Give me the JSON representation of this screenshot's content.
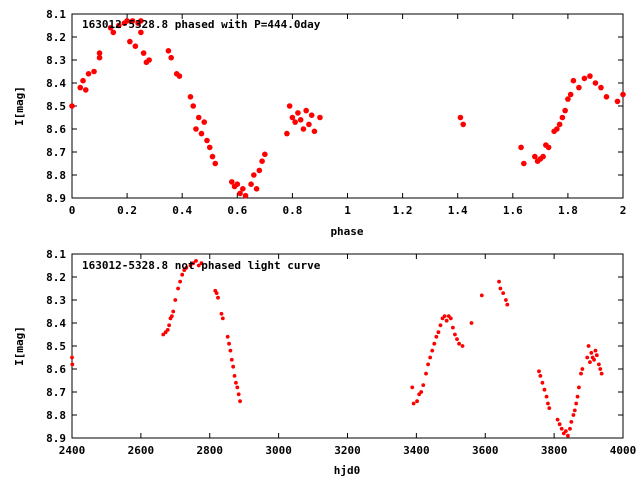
{
  "chart_data": [
    {
      "type": "scatter",
      "title": "163012-5328.8 phased with P=444.0day",
      "xlabel": "phase",
      "ylabel": "I[mag]",
      "xlim": [
        0,
        2
      ],
      "ylim": [
        8.1,
        8.9
      ],
      "y_inverted": true,
      "x_ticks": [
        "0",
        "0.2",
        "0.4",
        "0.6",
        "0.8",
        "1",
        "1.2",
        "1.4",
        "1.6",
        "1.8",
        "2"
      ],
      "y_ticks": [
        "8.1",
        "8.2",
        "8.3",
        "8.4",
        "8.5",
        "8.6",
        "8.7",
        "8.8",
        "8.9"
      ],
      "grid": false,
      "marker_color": "#ff0000",
      "series": [
        {
          "x": [
            0.0,
            0.03,
            0.04,
            0.05,
            0.06,
            0.08,
            0.1,
            0.1,
            0.14,
            0.15,
            0.17,
            0.19,
            0.2,
            0.21,
            0.22,
            0.23,
            0.24,
            0.25,
            0.25,
            0.26,
            0.27,
            0.28,
            0.35,
            0.36,
            0.38,
            0.39,
            0.43,
            0.44,
            0.45,
            0.46,
            0.47,
            0.48,
            0.49,
            0.5,
            0.51,
            0.52,
            0.58,
            0.59,
            0.6,
            0.61,
            0.62,
            0.63,
            0.65,
            0.66,
            0.67,
            0.68,
            0.69,
            0.7,
            0.78,
            0.79,
            0.8,
            0.81,
            0.82,
            0.83,
            0.84,
            0.85,
            0.86,
            0.87,
            0.88,
            0.9,
            1.41,
            1.42,
            1.63,
            1.64,
            1.68,
            1.69,
            1.7,
            1.71,
            1.72,
            1.73,
            1.75,
            1.76,
            1.77,
            1.78,
            1.79,
            1.8,
            1.81,
            1.82,
            1.84,
            1.86,
            1.88,
            1.9,
            1.92,
            1.94,
            1.98,
            2.0
          ],
          "y": [
            8.5,
            8.42,
            8.39,
            8.43,
            8.36,
            8.35,
            8.27,
            8.29,
            8.16,
            8.18,
            8.15,
            8.14,
            8.13,
            8.22,
            8.13,
            8.24,
            8.14,
            8.13,
            8.18,
            8.27,
            8.31,
            8.3,
            8.26,
            8.29,
            8.36,
            8.37,
            8.46,
            8.5,
            8.6,
            8.55,
            8.62,
            8.57,
            8.65,
            8.68,
            8.72,
            8.75,
            8.83,
            8.85,
            8.84,
            8.88,
            8.86,
            8.89,
            8.84,
            8.8,
            8.86,
            8.78,
            8.74,
            8.71,
            8.62,
            8.5,
            8.55,
            8.57,
            8.53,
            8.56,
            8.6,
            8.52,
            8.58,
            8.54,
            8.61,
            8.55,
            8.55,
            8.58,
            8.68,
            8.75,
            8.72,
            8.74,
            8.73,
            8.72,
            8.67,
            8.68,
            8.61,
            8.6,
            8.58,
            8.55,
            8.52,
            8.47,
            8.45,
            8.39,
            8.42,
            8.38,
            8.37,
            8.4,
            8.42,
            8.46,
            8.48,
            8.45
          ]
        }
      ]
    },
    {
      "type": "scatter",
      "title": "163012-5328.8 not phased light curve",
      "xlabel": "hjd0",
      "ylabel": "I[mag]",
      "xlim": [
        2400,
        4000
      ],
      "ylim": [
        8.1,
        8.9
      ],
      "y_inverted": true,
      "x_ticks": [
        "2400",
        "2600",
        "2800",
        "3000",
        "3200",
        "3400",
        "3600",
        "3800",
        "4000"
      ],
      "y_ticks": [
        "8.1",
        "8.2",
        "8.3",
        "8.4",
        "8.5",
        "8.6",
        "8.7",
        "8.8",
        "8.9"
      ],
      "grid": false,
      "marker_color": "#ff0000",
      "series": [
        {
          "x": [
            2400,
            2401,
            2665,
            2672,
            2678,
            2682,
            2686,
            2690,
            2694,
            2700,
            2708,
            2714,
            2720,
            2726,
            2732,
            2744,
            2752,
            2760,
            2768,
            2776,
            2816,
            2820,
            2824,
            2834,
            2838,
            2852,
            2856,
            2860,
            2864,
            2868,
            2872,
            2876,
            2880,
            2884,
            2888,
            3388,
            3392,
            3402,
            3408,
            3414,
            3420,
            3428,
            3434,
            3440,
            3446,
            3452,
            3458,
            3464,
            3470,
            3476,
            3482,
            3488,
            3494,
            3500,
            3506,
            3512,
            3518,
            3524,
            3534,
            3560,
            3590,
            3640,
            3644,
            3652,
            3660,
            3664,
            3756,
            3760,
            3766,
            3772,
            3778,
            3782,
            3786,
            3810,
            3816,
            3822,
            3828,
            3834,
            3840,
            3846,
            3850,
            3856,
            3860,
            3864,
            3868,
            3872,
            3878,
            3882,
            3896,
            3900,
            3904,
            3908,
            3912,
            3916,
            3920,
            3924,
            3930,
            3934,
            3938
          ],
          "y": [
            8.55,
            8.58,
            8.45,
            8.44,
            8.43,
            8.41,
            8.38,
            8.37,
            8.35,
            8.3,
            8.25,
            8.22,
            8.19,
            8.17,
            8.16,
            8.15,
            8.14,
            8.13,
            8.15,
            8.14,
            8.26,
            8.27,
            8.29,
            8.36,
            8.38,
            8.46,
            8.49,
            8.52,
            8.56,
            8.59,
            8.63,
            8.66,
            8.68,
            8.71,
            8.74,
            8.68,
            8.75,
            8.74,
            8.71,
            8.7,
            8.67,
            8.62,
            8.58,
            8.55,
            8.52,
            8.49,
            8.46,
            8.44,
            8.41,
            8.38,
            8.37,
            8.39,
            8.37,
            8.38,
            8.42,
            8.45,
            8.47,
            8.49,
            8.5,
            8.4,
            8.28,
            8.22,
            8.25,
            8.27,
            8.3,
            8.32,
            8.61,
            8.63,
            8.66,
            8.69,
            8.72,
            8.75,
            8.77,
            8.82,
            8.84,
            8.86,
            8.88,
            8.87,
            8.89,
            8.86,
            8.83,
            8.8,
            8.78,
            8.75,
            8.72,
            8.68,
            8.62,
            8.6,
            8.55,
            8.5,
            8.57,
            8.53,
            8.55,
            8.56,
            8.52,
            8.54,
            8.58,
            8.6,
            8.62
          ]
        }
      ]
    }
  ]
}
